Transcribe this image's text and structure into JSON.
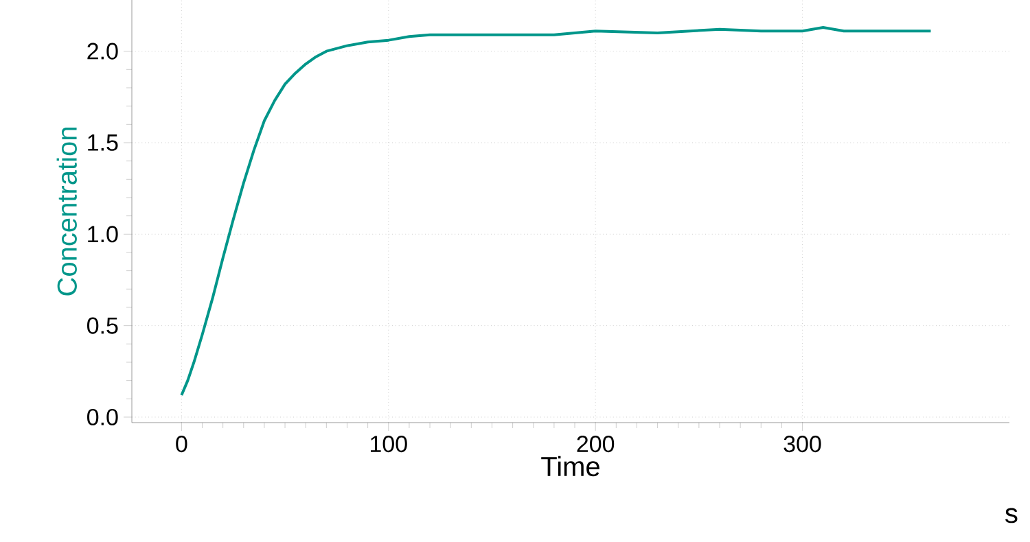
{
  "chart_data": {
    "type": "line",
    "xlabel": "Time",
    "ylabel": "Concentration",
    "annotations": [
      "s"
    ],
    "xlim": [
      -24,
      400
    ],
    "ylim": [
      -0.03,
      2.28
    ],
    "xticks": [
      0,
      100,
      200,
      300
    ],
    "yticks": [
      {
        "value": 0,
        "label": "0.0"
      },
      {
        "value": 0.5,
        "label": "0.5"
      },
      {
        "value": 1,
        "label": "1.0"
      },
      {
        "value": 1.5,
        "label": "1.5"
      },
      {
        "value": 2,
        "label": "2.0"
      }
    ],
    "grid": true,
    "marker": "none",
    "line_style": "solid",
    "series": [
      {
        "color": "#00968a",
        "x": [
          0,
          3,
          6,
          10,
          15,
          20,
          25,
          30,
          35,
          40,
          45,
          50,
          55,
          60,
          65,
          70,
          80,
          90,
          100,
          110,
          120,
          150,
          180,
          200,
          230,
          260,
          280,
          300,
          310,
          320,
          340,
          362
        ],
        "values": [
          0.12,
          0.2,
          0.3,
          0.45,
          0.65,
          0.87,
          1.08,
          1.28,
          1.46,
          1.62,
          1.73,
          1.82,
          1.88,
          1.93,
          1.97,
          2.0,
          2.03,
          2.05,
          2.06,
          2.08,
          2.09,
          2.09,
          2.09,
          2.11,
          2.1,
          2.12,
          2.11,
          2.11,
          2.13,
          2.11,
          2.11,
          2.11
        ]
      }
    ]
  }
}
